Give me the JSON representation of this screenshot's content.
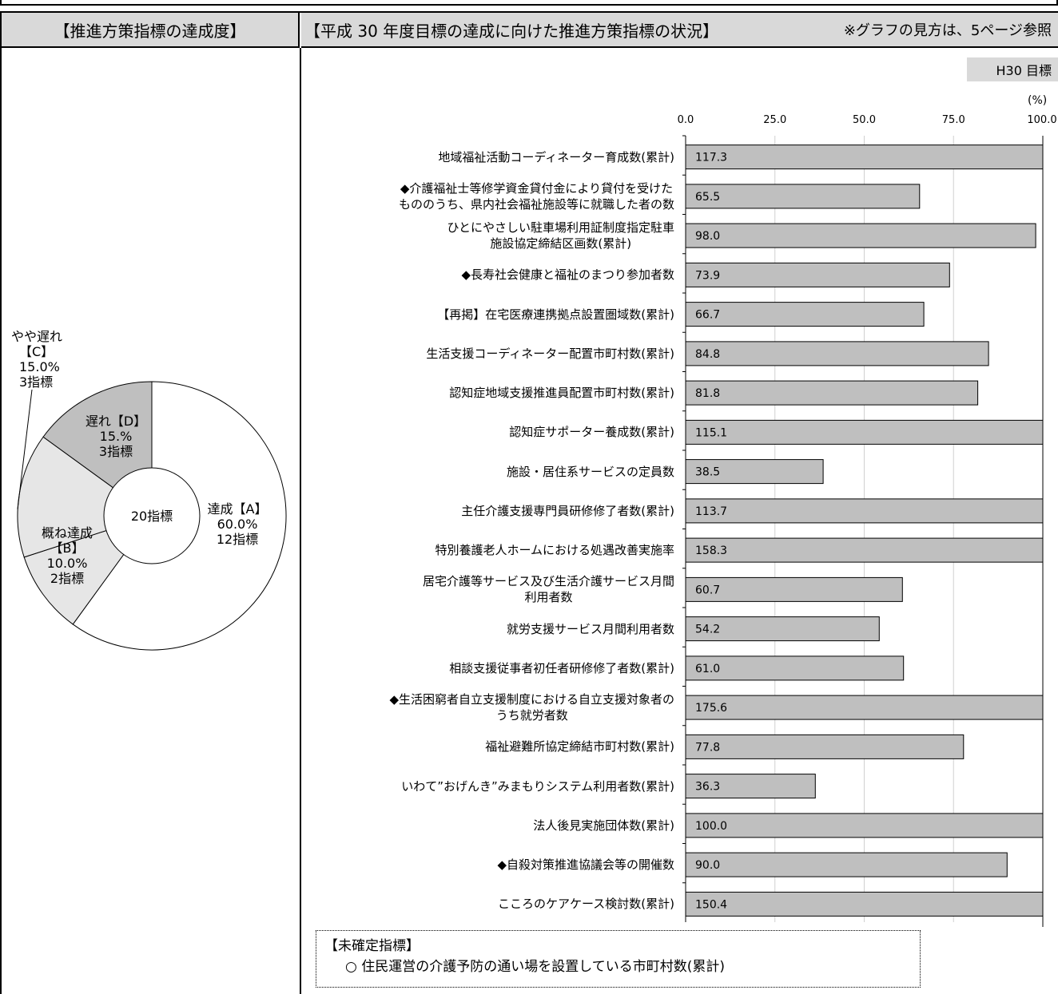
{
  "header": {
    "left_title": "【推進方策指標の達成度】",
    "right_title": "【平成 30 年度目標の達成に向けた推進方策指標の状況】",
    "note": "※グラフの見方は、5ページ参照"
  },
  "bar_chart": {
    "goal_label": "H30 目標",
    "unit": "(%)"
  },
  "chart_data": [
    {
      "type": "pie",
      "center_label": "20指標",
      "slices": [
        {
          "name": "達成【A】",
          "percent": "60.0%",
          "count": "12指標",
          "value": 60.0,
          "color": "#ffffff"
        },
        {
          "name": "概ね達成【B】",
          "percent": "10.0%",
          "count": "2指標",
          "value": 10.0,
          "color": "#e6e6e6"
        },
        {
          "name": "やや遅れ【C】",
          "percent": "15.0%",
          "count": "3指標",
          "value": 15.0,
          "color": "#e6e6e6"
        },
        {
          "name": "遅れ【D】",
          "percent": "15.%",
          "count": "3指標",
          "value": 15.0,
          "color": "#bfbfbf"
        }
      ],
      "labels": {
        "a_line1": "達成【A】",
        "a_line2": "60.0%",
        "a_line3": "12指標",
        "b_line1": "概ね達成",
        "b_line2": "【B】",
        "b_line3": "10.0%",
        "b_line4": "2指標",
        "c_line1": "やや遅れ",
        "c_line2": "【C】",
        "c_line3": "15.0%",
        "c_line4": "3指標",
        "d_line1": "遅れ【D】",
        "d_line2": "15.%",
        "d_line3": "3指標"
      }
    },
    {
      "type": "bar",
      "orientation": "horizontal",
      "xlim": [
        0,
        100
      ],
      "ticks": [
        "0.0",
        "25.0",
        "50.0",
        "75.0",
        "100.0"
      ],
      "bar_color": "#bfbfbf",
      "categories": [
        [
          "地域福祉活動コーディネーター育成数(累計)"
        ],
        [
          "◆介護福祉士等修学資金貸付金により貸付を受けた",
          "もののうち、県内社会福祉施設等に就職した者の数"
        ],
        [
          "ひとにやさしい駐車場利用証制度指定駐車",
          "施設協定締結区画数(累計)"
        ],
        [
          "◆長寿社会健康と福祉のまつり参加者数"
        ],
        [
          "【再掲】在宅医療連携拠点設置圏域数(累計)"
        ],
        [
          "生活支援コーディネーター配置市町村数(累計)"
        ],
        [
          "認知症地域支援推進員配置市町村数(累計)"
        ],
        [
          "認知症サポーター養成数(累計)"
        ],
        [
          "施設・居住系サービスの定員数"
        ],
        [
          "主任介護支援専門員研修修了者数(累計)"
        ],
        [
          "特別養護老人ホームにおける処遇改善実施率"
        ],
        [
          "居宅介護等サービス及び生活介護サービス月間",
          "利用者数"
        ],
        [
          "就労支援サービス月間利用者数"
        ],
        [
          "相談支援従事者初任者研修修了者数(累計)"
        ],
        [
          "◆生活困窮者自立支援制度における自立支援対象者の",
          "うち就労者数"
        ],
        [
          "福祉避難所協定締結市町村数(累計)"
        ],
        [
          "いわて”おげんき”みまもりシステム利用者数(累計)"
        ],
        [
          "法人後見実施団体数(累計)"
        ],
        [
          "◆自殺対策推進協議会等の開催数"
        ],
        [
          "こころのケアケース検討数(累計)"
        ]
      ],
      "values": [
        117.3,
        65.5,
        98.0,
        73.9,
        66.7,
        84.8,
        81.8,
        115.1,
        38.5,
        113.7,
        158.3,
        60.7,
        54.2,
        61.0,
        175.6,
        77.8,
        36.3,
        100.0,
        90.0,
        150.4
      ],
      "value_labels": [
        "117.3",
        "65.5",
        "98.0",
        "73.9",
        "66.7",
        "84.8",
        "81.8",
        "115.1",
        "38.5",
        "113.7",
        "158.3",
        "60.7",
        "54.2",
        "61.0",
        "175.6",
        "77.8",
        "36.3",
        "100.0",
        "90.0",
        "150.4"
      ]
    }
  ],
  "pending": {
    "title": "【未確定指標】",
    "item": "○ 住民運営の介護予防の通い場を設置している市町村数(累計)"
  }
}
